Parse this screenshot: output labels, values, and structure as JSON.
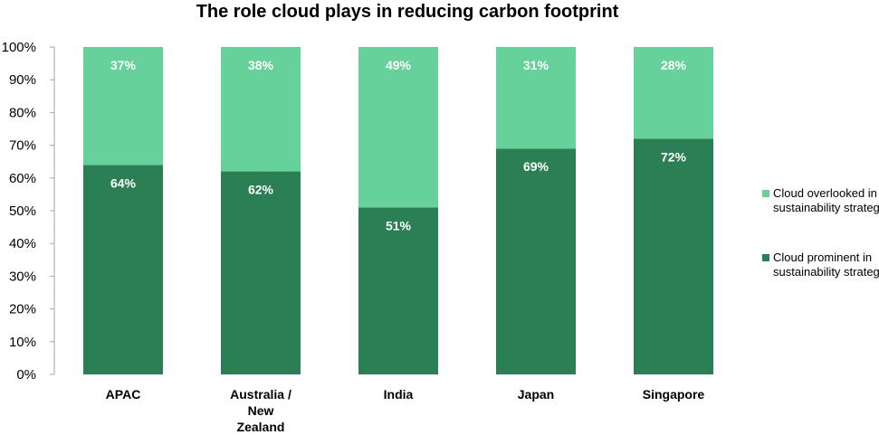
{
  "chart_data": {
    "type": "bar",
    "stacked": true,
    "title": "The role cloud plays in reducing carbon footprint",
    "xlabel": "",
    "ylabel": "",
    "ylim": [
      0,
      100
    ],
    "yticks": [
      "0%",
      "10%",
      "20%",
      "30%",
      "40%",
      "50%",
      "60%",
      "70%",
      "80%",
      "90%",
      "100%"
    ],
    "categories": [
      "APAC",
      "Australia / New Zealand",
      "India",
      "Japan",
      "Singapore"
    ],
    "series": [
      {
        "name": "Cloud prominent in sustainability strategy",
        "values": [
          64,
          62,
          51,
          69,
          72
        ],
        "labels": [
          "64%",
          "62%",
          "51%",
          "69%",
          "72%"
        ],
        "color": "#2a8054"
      },
      {
        "name": "Cloud overlooked in sustainability strategy",
        "values": [
          37,
          38,
          49,
          31,
          28
        ],
        "labels": [
          "37%",
          "38%",
          "49%",
          "31%",
          "28%"
        ],
        "color": "#66d19a"
      }
    ],
    "legend_position": "right",
    "grid": false
  }
}
